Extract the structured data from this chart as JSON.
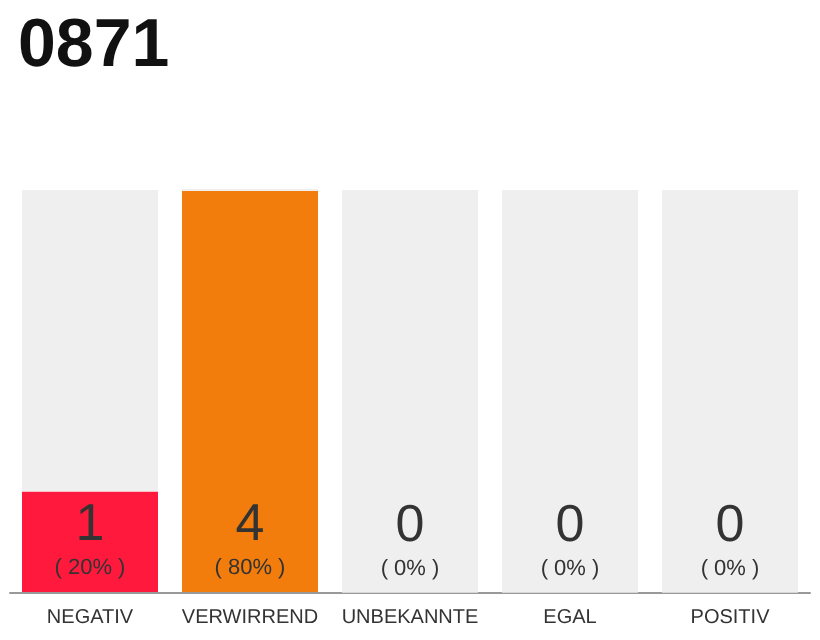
{
  "chart_data": {
    "type": "bar",
    "title": "0871",
    "categories": [
      "NEGATIV",
      "VERWIRREND",
      "UNBEKANNTE",
      "EGAL",
      "POSITIV"
    ],
    "stacked": true,
    "series": [
      {
        "colors": [
          "#ff1a3d",
          "#f27d0c",
          "#d6d6d6",
          "#d6d6d6",
          "#d6d6d6"
        ],
        "values": [
          1,
          4,
          0,
          0,
          0
        ],
        "value_labels": [
          "1\n( 20% )",
          "4\n( 80% )",
          "0\n( 0% )",
          "0\n( 0% )",
          "0\n( 0% )"
        ]
      },
      {
        "color": "#efefef",
        "values": [
          3,
          0,
          4,
          4,
          4
        ]
      }
    ],
    "ylim": [
      0,
      4
    ],
    "tick_labels": "x"
  }
}
